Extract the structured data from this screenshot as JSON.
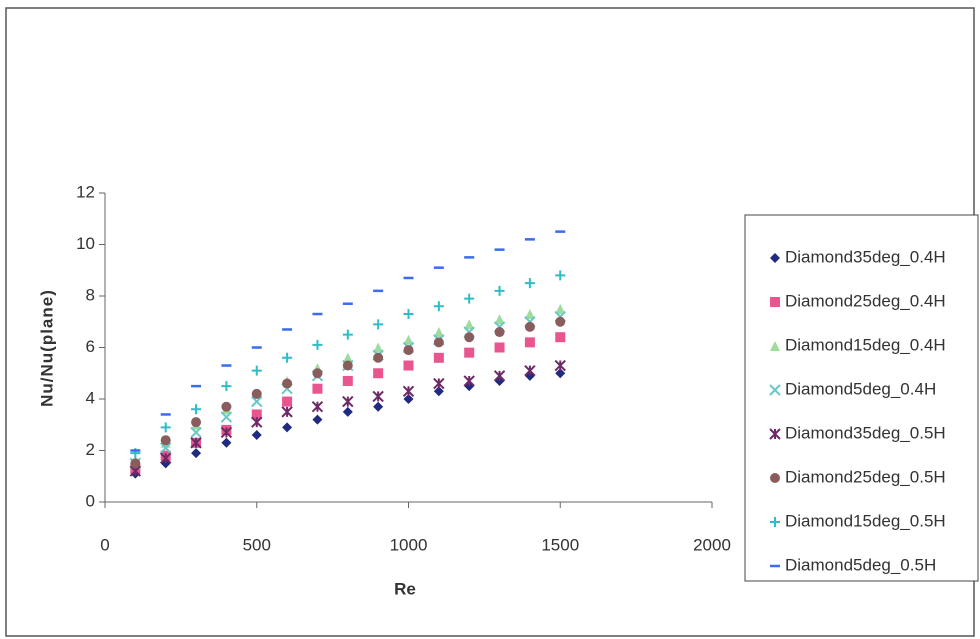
{
  "chart_data": {
    "type": "scatter",
    "xlabel": "Re",
    "ylabel": "Nu/Nu(plane)",
    "x": [
      100,
      200,
      300,
      400,
      500,
      600,
      700,
      800,
      900,
      1000,
      1100,
      1200,
      1300,
      1400,
      1500
    ],
    "xlim": [
      0,
      2000
    ],
    "xticks": [
      0,
      500,
      1000,
      1500,
      2000
    ],
    "ylim": [
      0,
      12
    ],
    "yticks": [
      0,
      2,
      4,
      6,
      8,
      10,
      12
    ],
    "legend": "right",
    "series": [
      {
        "name": "Diamond35deg_0.4H",
        "color": "#1f2a80",
        "marker": "diamond",
        "values": [
          1.1,
          1.5,
          1.9,
          2.3,
          2.6,
          2.9,
          3.2,
          3.5,
          3.7,
          4.0,
          4.3,
          4.5,
          4.7,
          4.9,
          5.0
        ]
      },
      {
        "name": "Diamond25deg_0.4H",
        "color": "#e8558f",
        "marker": "square",
        "values": [
          1.3,
          1.8,
          2.3,
          2.8,
          3.4,
          3.9,
          4.4,
          4.7,
          5.0,
          5.3,
          5.6,
          5.8,
          6.0,
          6.2,
          6.4
        ]
      },
      {
        "name": "Diamond15deg_0.4H",
        "color": "#9edc9e",
        "marker": "triangle",
        "values": [
          1.6,
          2.3,
          3.0,
          3.6,
          4.2,
          4.7,
          5.2,
          5.6,
          6.0,
          6.3,
          6.6,
          6.9,
          7.1,
          7.3,
          7.5
        ]
      },
      {
        "name": "Diamond5deg_0.4H",
        "color": "#66c8c8",
        "marker": "x",
        "values": [
          1.5,
          2.1,
          2.7,
          3.3,
          3.9,
          4.4,
          4.9,
          5.3,
          5.7,
          6.0,
          6.3,
          6.6,
          6.8,
          7.0,
          7.2
        ]
      },
      {
        "name": "Diamond35deg_0.5H",
        "color": "#6e2a66",
        "marker": "star",
        "values": [
          1.2,
          1.7,
          2.3,
          2.7,
          3.1,
          3.5,
          3.7,
          3.9,
          4.1,
          4.3,
          4.6,
          4.7,
          4.9,
          5.1,
          5.3
        ]
      },
      {
        "name": "Diamond25deg_0.5H",
        "color": "#8a5c5c",
        "marker": "circle",
        "values": [
          1.5,
          2.4,
          3.1,
          3.7,
          4.2,
          4.6,
          5.0,
          5.3,
          5.6,
          5.9,
          6.2,
          6.4,
          6.6,
          6.8,
          7.0
        ]
      },
      {
        "name": "Diamond15deg_0.5H",
        "color": "#2fbcc8",
        "marker": "plus",
        "values": [
          1.9,
          2.9,
          3.6,
          4.5,
          5.1,
          5.6,
          6.1,
          6.5,
          6.9,
          7.3,
          7.6,
          7.9,
          8.2,
          8.5,
          8.8
        ]
      },
      {
        "name": "Diamond5deg_0.5H",
        "color": "#3a6cf0",
        "marker": "dash",
        "values": [
          2.0,
          3.4,
          4.5,
          5.3,
          6.0,
          6.7,
          7.3,
          7.7,
          8.2,
          8.7,
          9.1,
          9.5,
          9.8,
          10.2,
          10.5
        ]
      }
    ]
  }
}
